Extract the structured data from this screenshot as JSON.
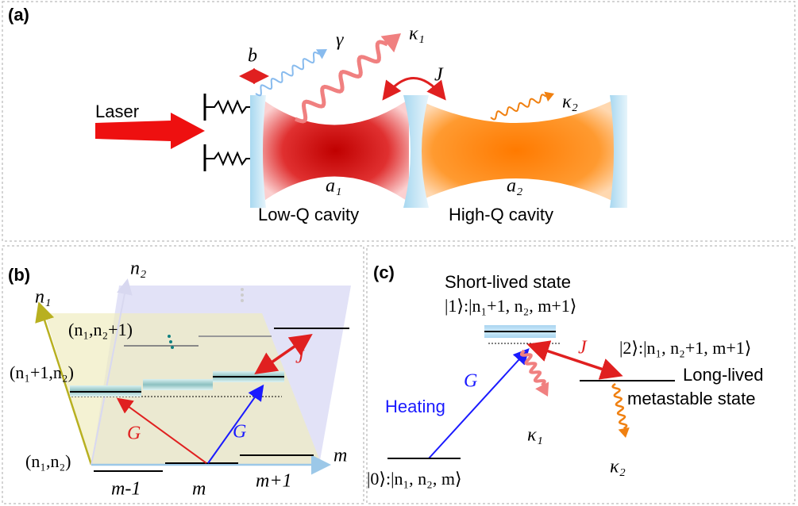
{
  "panel_a": {
    "label": "(a)",
    "laser": "Laser",
    "b": "b",
    "gamma": "γ",
    "kappa1": "κ₁",
    "J": "J",
    "kappa2": "κ₂",
    "mode1": "a₁",
    "mode2": "a₂",
    "low_q": "Low-Q cavity",
    "high_q": "High-Q cavity"
  },
  "panel_b": {
    "label": "(b)",
    "n1_axis": "n₁",
    "n2_axis": "n₂",
    "m_axis": "m",
    "level_n2": "(n₁,n₂+1)",
    "level_n1": "(n₁+1,n₂)",
    "level_0": "(n₁,n₂)",
    "J": "J",
    "G_red": "G",
    "G_blue": "G",
    "m_minus": "m-1",
    "m": "m",
    "m_plus": "m+1"
  },
  "panel_c": {
    "label": "(c)",
    "short_lived": "Short-lived state",
    "state1": "|1⟩:|n₁+1, n₂, m+1⟩",
    "J": "J",
    "state2": "|2⟩:|n₁, n₂+1, m+1⟩",
    "long_lived": "Long-lived",
    "metastable": "metastable state",
    "G": "G",
    "heating": "Heating",
    "kappa1": "κ₁",
    "kappa2": "κ₂",
    "state0": "|0⟩:|n₁, n₂, m⟩"
  }
}
